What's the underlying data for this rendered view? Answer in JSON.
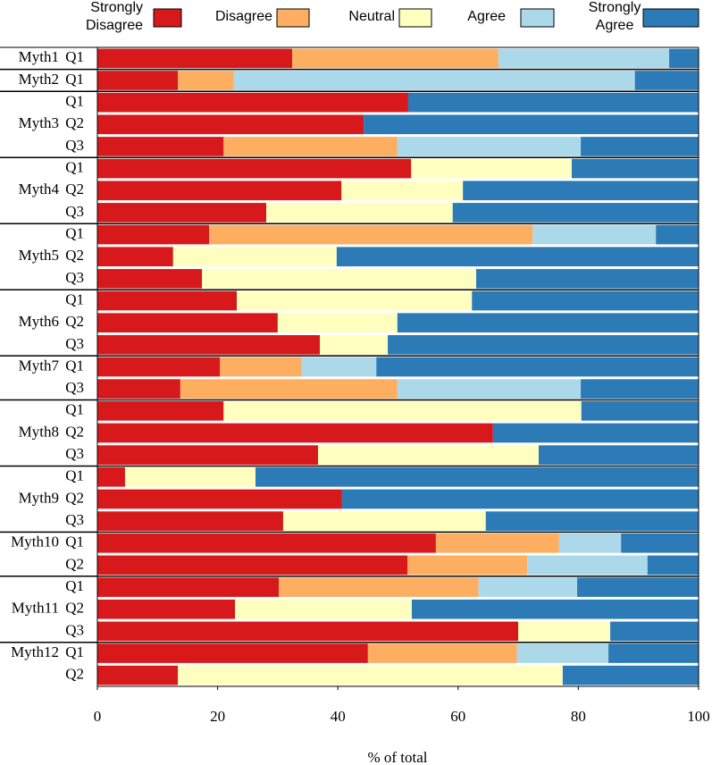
{
  "chart_data": {
    "type": "stacked-barh",
    "xlabel": "% of total",
    "groups": [
      {
        "name": "Myth1",
        "categories": [
          "Q1"
        ]
      },
      {
        "name": "Myth2",
        "categories": [
          "Q1"
        ]
      },
      {
        "name": "Myth3",
        "categories": [
          "Q1",
          "Q2",
          "Q3"
        ]
      },
      {
        "name": "Myth4",
        "categories": [
          "Q1",
          "Q2",
          "Q3"
        ]
      },
      {
        "name": "Myth5",
        "categories": [
          "Q1",
          "Q2",
          "Q3"
        ]
      },
      {
        "name": "Myth6",
        "categories": [
          "Q1",
          "Q2",
          "Q3"
        ]
      },
      {
        "name": "Myth7",
        "categories": [
          "Q1",
          "Q3"
        ]
      },
      {
        "name": "Myth8",
        "categories": [
          "Q1",
          "Q2",
          "Q3"
        ]
      },
      {
        "name": "Myth9",
        "categories": [
          "Q1",
          "Q2",
          "Q3"
        ]
      },
      {
        "name": "Myth10",
        "categories": [
          "Q1",
          "Q2"
        ]
      },
      {
        "name": "Myth11",
        "categories": [
          "Q1",
          "Q2",
          "Q3"
        ]
      },
      {
        "name": "Myth12",
        "categories": [
          "Q1",
          "Q2"
        ]
      }
    ],
    "series": [
      {
        "name": "Strongly Disagree",
        "color": "#d7191c",
        "values": [
          32.4,
          13.4,
          51.7,
          44.3,
          21,
          52.2,
          40.6,
          28.1,
          18.6,
          12.6,
          17.4,
          23.2,
          30,
          37,
          20.4,
          13.8,
          21,
          65.8,
          36.7,
          4.6,
          40.7,
          30.9,
          56.3,
          51.6,
          30.2,
          22.9,
          70,
          45,
          13.4
        ]
      },
      {
        "name": "Disagree",
        "color": "#fdae61",
        "values": [
          34.3,
          9.3,
          0,
          0,
          28.9,
          0,
          0,
          0,
          53.8,
          0,
          0,
          0,
          0,
          0,
          13.6,
          36.1,
          0,
          0,
          0,
          0,
          0,
          0,
          20.5,
          19.9,
          33.2,
          0,
          0,
          24.8,
          0
        ]
      },
      {
        "name": "Neutral",
        "color": "#ffffbf",
        "values": [
          0,
          0,
          0,
          0,
          0,
          26.7,
          20.2,
          31,
          0,
          27.2,
          45.6,
          39.1,
          19.9,
          11.3,
          0,
          0,
          59.5,
          0,
          36.7,
          21.7,
          0,
          33.7,
          0,
          0,
          0,
          29.4,
          15.3,
          0,
          64
        ]
      },
      {
        "name": "Agree",
        "color": "#abd9e9",
        "values": [
          28.4,
          66.7,
          0,
          0,
          30.5,
          0,
          0,
          0,
          20.5,
          0,
          0,
          0,
          0,
          0,
          12.4,
          30.5,
          0,
          0,
          0,
          0,
          0,
          0,
          10.3,
          20,
          16.4,
          0,
          0,
          15.2,
          0
        ]
      },
      {
        "name": "Strongly Agree",
        "color": "#2c7bb6",
        "values": [
          4.9,
          10.6,
          48.3,
          55.7,
          19.6,
          21.1,
          39.2,
          40.9,
          7.1,
          60.2,
          37,
          37.7,
          50.1,
          51.7,
          53.6,
          19.6,
          19.5,
          34.2,
          26.6,
          73.7,
          59.3,
          35.4,
          12.9,
          8.5,
          20.2,
          47.7,
          14.7,
          15,
          22.6
        ]
      }
    ],
    "xlim": [
      0,
      100
    ],
    "xticks": [
      0,
      20,
      40,
      60,
      80,
      100
    ]
  }
}
